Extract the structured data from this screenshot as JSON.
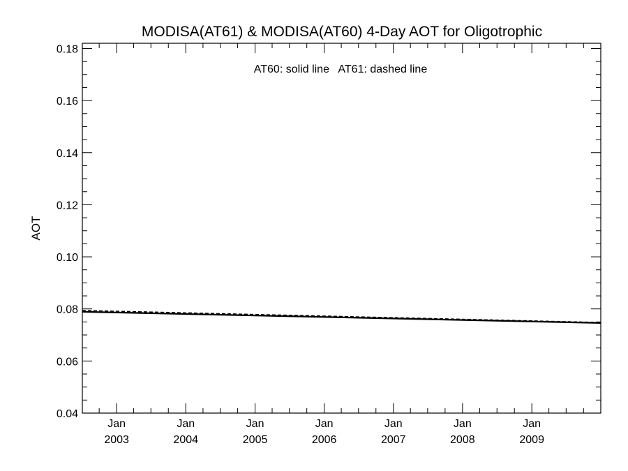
{
  "chart_data": {
    "type": "line",
    "title": "MODISA(AT61) & MODISA(AT60) 4-Day AOT for Oligotrophic",
    "xlabel": "",
    "ylabel": "AOT",
    "annotation": "AT60: solid line   AT61: dashed line",
    "xlim": [
      "2002-07-04",
      "2009-12-31"
    ],
    "ylim": [
      0.04,
      0.182
    ],
    "y_ticks": [
      "0.04",
      "0.06",
      "0.08",
      "0.10",
      "0.12",
      "0.14",
      "0.16",
      "0.18"
    ],
    "x_ticks": [
      {
        "date": "2003-01-01",
        "month": "Jan",
        "year": "2003"
      },
      {
        "date": "2004-01-01",
        "month": "Jan",
        "year": "2004"
      },
      {
        "date": "2005-01-01",
        "month": "Jan",
        "year": "2005"
      },
      {
        "date": "2006-01-01",
        "month": "Jan",
        "year": "2006"
      },
      {
        "date": "2007-01-01",
        "month": "Jan",
        "year": "2007"
      },
      {
        "date": "2008-01-01",
        "month": "Jan",
        "year": "2008"
      },
      {
        "date": "2009-01-01",
        "month": "Jan",
        "year": "2009"
      }
    ],
    "grid": false,
    "series": [
      {
        "name": "AT60",
        "style": "solid",
        "color": "#000000",
        "x": [
          "2002-07-04",
          "2009-12-31"
        ],
        "y": [
          0.0789,
          0.0746
        ]
      },
      {
        "name": "AT61",
        "style": "dashed",
        "color": "#000000",
        "x": [
          "2002-07-04",
          "2009-12-31"
        ],
        "y": [
          0.0794,
          0.0748
        ]
      }
    ]
  }
}
